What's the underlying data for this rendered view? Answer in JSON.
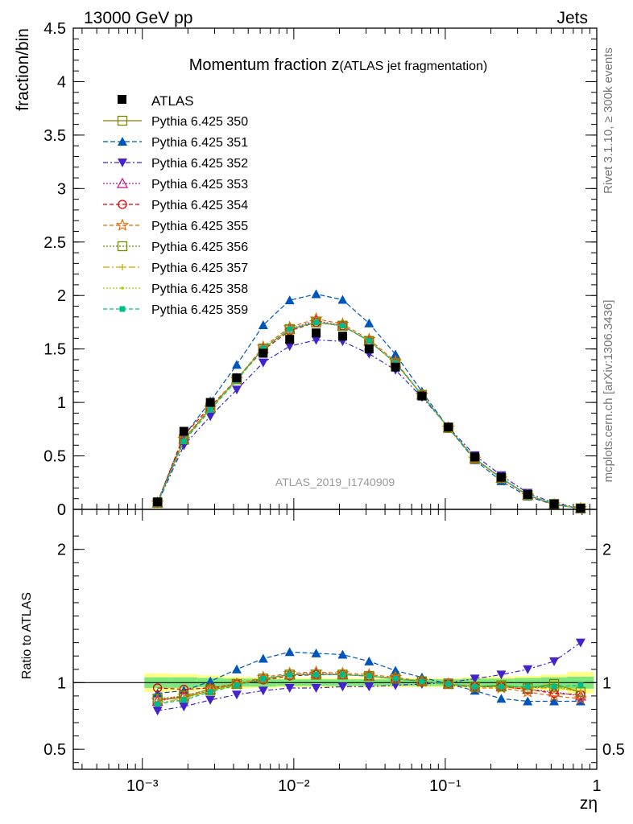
{
  "header": {
    "left": "13000 GeV pp",
    "right": "Jets"
  },
  "side_labels": {
    "rivet": "Rivet 3.1.10, ≥ 300k events",
    "mcplots": "mcplots.cern.ch [arXiv:1306.3436]"
  },
  "chart_data": {
    "type": "line",
    "title_main": "Momentum fraction z",
    "title_sub": "(ATLAS jet fragmentation)",
    "watermark": "ATLAS_2019_I1740909",
    "xlabel": "zη",
    "xscale": "log",
    "xlim": [
      0.00035,
      1.0
    ],
    "x_tick_labels": [
      "10⁻³",
      "10⁻²",
      "10⁻¹",
      "1"
    ],
    "x": [
      0.00126,
      0.00188,
      0.00281,
      0.0042,
      0.00628,
      0.00939,
      0.01404,
      0.021,
      0.0314,
      0.0469,
      0.0701,
      0.1048,
      0.1567,
      0.2342,
      0.35,
      0.523,
      0.782
    ],
    "main": {
      "ylabel": "fraction/bin",
      "ylim": [
        0,
        4.5
      ],
      "yticks": [
        "0",
        "0.5",
        "1",
        "1.5",
        "2",
        "2.5",
        "3",
        "3.5",
        "4",
        "4.5"
      ]
    },
    "ratio": {
      "ylabel": "Ratio to ATLAS",
      "ylim": [
        0.35,
        2.3
      ],
      "yticks": [
        "0.5",
        "1",
        "2"
      ]
    },
    "data": {
      "name": "ATLAS",
      "color": "#000000",
      "y": [
        0.07,
        0.73,
        1.0,
        1.23,
        1.46,
        1.59,
        1.65,
        1.62,
        1.5,
        1.33,
        1.06,
        0.77,
        0.49,
        0.3,
        0.14,
        0.05,
        0.01
      ]
    },
    "series": [
      {
        "name": "Pythia 6.425 350",
        "color": "#808000",
        "marker": "square-open",
        "dash": "solid",
        "ratio": [
          0.87,
          0.89,
          0.94,
          0.99,
          1.03,
          1.06,
          1.06,
          1.06,
          1.05,
          1.03,
          1.01,
          0.99,
          0.97,
          0.98,
          0.96,
          0.99,
          0.93
        ]
      },
      {
        "name": "Pythia 6.425 351",
        "color": "#0055bb",
        "marker": "triangle-up",
        "dash": "6,3",
        "ratio": [
          0.92,
          0.94,
          1.01,
          1.1,
          1.18,
          1.23,
          1.22,
          1.21,
          1.16,
          1.09,
          1.04,
          0.99,
          0.94,
          0.88,
          0.86,
          0.86,
          0.86
        ]
      },
      {
        "name": "Pythia 6.425 352",
        "color": "#4422cc",
        "marker": "triangle-down",
        "dash": "6,3,2,3",
        "ratio": [
          0.79,
          0.82,
          0.87,
          0.91,
          0.94,
          0.96,
          0.96,
          0.97,
          0.97,
          0.98,
          0.99,
          1.0,
          1.03,
          1.06,
          1.1,
          1.16,
          1.3
        ]
      },
      {
        "name": "Pythia 6.425 353",
        "color": "#bb1188",
        "marker": "triangle-open",
        "dash": "2,2",
        "ratio": [
          0.86,
          0.9,
          0.95,
          0.99,
          1.03,
          1.06,
          1.07,
          1.06,
          1.05,
          1.03,
          1.01,
          0.99,
          0.97,
          0.97,
          0.95,
          0.93,
          0.9
        ]
      },
      {
        "name": "Pythia 6.425 354",
        "color": "#dd0000",
        "marker": "circle-open",
        "dash": "5,3",
        "ratio": [
          0.96,
          0.95,
          0.96,
          0.99,
          1.02,
          1.05,
          1.06,
          1.06,
          1.05,
          1.03,
          1.01,
          0.99,
          0.97,
          0.97,
          0.95,
          0.92,
          0.91
        ]
      },
      {
        "name": "Pythia 6.425 355",
        "color": "#ee6600",
        "marker": "star-open",
        "dash": "5,3",
        "ratio": [
          0.87,
          0.9,
          0.95,
          0.99,
          1.04,
          1.07,
          1.08,
          1.07,
          1.06,
          1.04,
          1.01,
          0.99,
          0.96,
          0.96,
          0.93,
          0.9,
          0.88
        ]
      },
      {
        "name": "Pythia 6.425 356",
        "color": "#778800",
        "marker": "square-open",
        "dash": "2,2",
        "ratio": [
          0.88,
          0.9,
          0.95,
          0.99,
          1.03,
          1.06,
          1.06,
          1.06,
          1.05,
          1.03,
          1.01,
          0.99,
          0.97,
          0.97,
          0.96,
          0.97,
          0.93
        ]
      },
      {
        "name": "Pythia 6.425 357",
        "color": "#ccaa00",
        "marker": "tick",
        "dash": "8,3,2,3",
        "ratio": [
          0.85,
          0.88,
          0.94,
          0.99,
          1.03,
          1.06,
          1.06,
          1.06,
          1.05,
          1.03,
          1.01,
          0.99,
          0.97,
          0.97,
          0.96,
          0.96,
          0.94
        ]
      },
      {
        "name": "Pythia 6.425 358",
        "color": "#aacc00",
        "marker": "dot",
        "dash": "2,2",
        "ratio": [
          0.84,
          0.88,
          0.94,
          0.98,
          1.03,
          1.06,
          1.06,
          1.06,
          1.05,
          1.03,
          1.01,
          0.99,
          0.97,
          0.97,
          0.97,
          0.97,
          0.96
        ]
      },
      {
        "name": "Pythia 6.425 359",
        "color": "#00bb88",
        "marker": "square-filled",
        "dash": "5,3",
        "ratio": [
          0.84,
          0.87,
          0.93,
          0.98,
          1.03,
          1.06,
          1.06,
          1.06,
          1.05,
          1.03,
          1.01,
          0.99,
          0.97,
          0.97,
          0.97,
          0.97,
          0.98
        ]
      }
    ],
    "bands": {
      "inner_color": "#7ee87e",
      "outer_color": "#ffff88",
      "inner": [
        0.04,
        0.04,
        0.035,
        0.03,
        0.03,
        0.025,
        0.025,
        0.025,
        0.025,
        0.025,
        0.025,
        0.025,
        0.03,
        0.03,
        0.035,
        0.04,
        0.045
      ],
      "outer": [
        0.07,
        0.065,
        0.055,
        0.045,
        0.04,
        0.035,
        0.035,
        0.035,
        0.035,
        0.035,
        0.035,
        0.035,
        0.04,
        0.045,
        0.05,
        0.06,
        0.08
      ]
    }
  }
}
